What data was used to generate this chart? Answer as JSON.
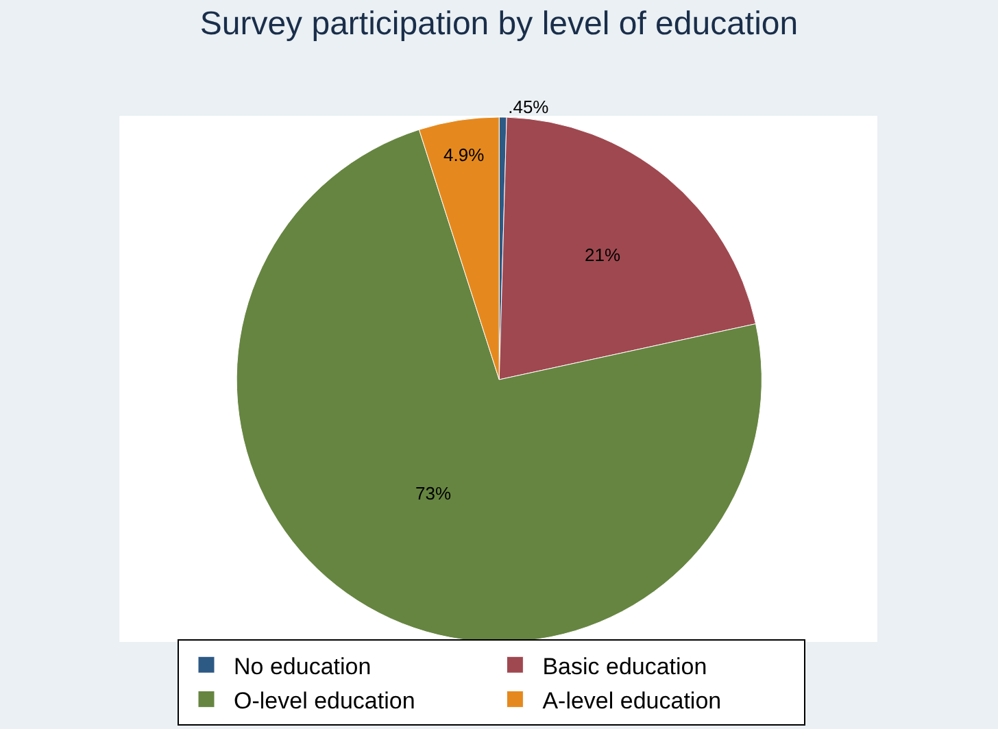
{
  "chart_data": {
    "type": "pie",
    "title": "Survey participation by level of education",
    "categories": [
      "No education",
      "Basic education",
      "O-level education",
      "A-level education"
    ],
    "values": [
      0.45,
      21,
      73,
      4.9
    ],
    "value_labels": [
      ".45%",
      "21%",
      "73%",
      "4.9%"
    ],
    "colors": [
      "#2d5985",
      "#9f4850",
      "#668541",
      "#e5891e"
    ],
    "legend": "bottom"
  }
}
